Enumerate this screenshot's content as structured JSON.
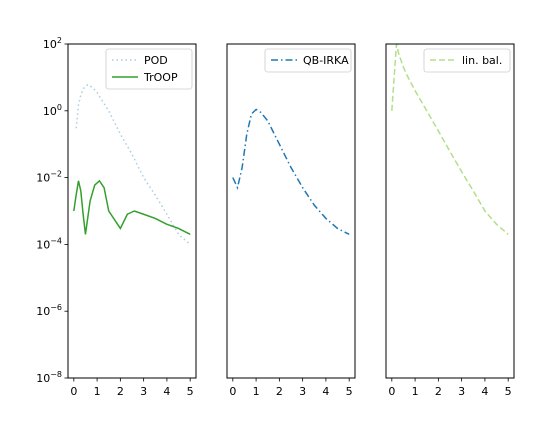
{
  "chart_data": [
    {
      "type": "line",
      "xlim": [
        -0.25,
        5.25
      ],
      "ylim": [
        1e-08,
        100
      ],
      "y_scale": "log",
      "x_ticks": [
        "0",
        "1",
        "2",
        "3",
        "4",
        "5"
      ],
      "y_ticks": [
        {
          "base": "10",
          "exp": "2"
        },
        {
          "base": "10",
          "exp": "0"
        },
        {
          "base": "10",
          "exp": "−2"
        },
        {
          "base": "10",
          "exp": "−4"
        },
        {
          "base": "10",
          "exp": "−6"
        },
        {
          "base": "10",
          "exp": "−8"
        }
      ],
      "legend_position": "top-right",
      "grid": false,
      "series": [
        {
          "name": "POD",
          "color": "#a6cee3",
          "style": "dotted",
          "x": [
            0.1,
            0.2,
            0.3,
            0.4,
            0.5,
            0.6,
            0.8,
            1,
            1.5,
            2,
            2.5,
            3,
            3.5,
            4,
            4.5,
            5
          ],
          "y": [
            0.3,
            1.5,
            3,
            4.5,
            5.5,
            6,
            5,
            3.5,
            1,
            0.2,
            0.05,
            0.01,
            0.003,
            0.0008,
            0.0002,
            0.0001
          ]
        },
        {
          "name": "TrOOP",
          "color": "#33a02c",
          "style": "solid",
          "x": [
            0,
            0.1,
            0.2,
            0.3,
            0.4,
            0.5,
            0.7,
            0.9,
            1.1,
            1.3,
            1.5,
            2,
            2.3,
            2.6,
            3,
            3.5,
            4,
            4.5,
            5
          ],
          "y": [
            0.001,
            0.003,
            0.008,
            0.004,
            0.0008,
            0.0002,
            0.002,
            0.006,
            0.008,
            0.005,
            0.001,
            0.0003,
            0.0008,
            0.001,
            0.0008,
            0.0006,
            0.0004,
            0.0003,
            0.0002
          ]
        }
      ]
    },
    {
      "type": "line",
      "xlim": [
        -0.25,
        5.25
      ],
      "ylim": [
        1e-08,
        100
      ],
      "y_scale": "log",
      "x_ticks": [
        "0",
        "1",
        "2",
        "3",
        "4",
        "5"
      ],
      "legend_position": "top-right",
      "grid": false,
      "series": [
        {
          "name": "QB-IRKA",
          "color": "#1f78b4",
          "style": "dashdot",
          "x": [
            0,
            0.2,
            0.4,
            0.6,
            0.8,
            1,
            1.2,
            1.5,
            2,
            2.5,
            3,
            3.5,
            4,
            4.5,
            5
          ],
          "y": [
            0.01,
            0.005,
            0.02,
            0.2,
            0.8,
            1.1,
            0.9,
            0.5,
            0.1,
            0.02,
            0.005,
            0.0015,
            0.0006,
            0.0003,
            0.0002
          ]
        }
      ]
    },
    {
      "type": "line",
      "xlim": [
        -0.25,
        5.25
      ],
      "ylim": [
        1e-08,
        100
      ],
      "y_scale": "log",
      "x_ticks": [
        "0",
        "1",
        "2",
        "3",
        "4",
        "5"
      ],
      "legend_position": "top-right",
      "grid": false,
      "series": [
        {
          "name": "lin. bal.",
          "color": "#b2df8a",
          "style": "dashed",
          "x": [
            0,
            0.1,
            0.2,
            0.3,
            0.5,
            0.7,
            1,
            1.5,
            2,
            2.5,
            3,
            3.5,
            4,
            4.5,
            5
          ],
          "y": [
            1,
            10,
            100,
            50,
            20,
            10,
            4,
            1,
            0.25,
            0.06,
            0.015,
            0.004,
            0.001,
            0.0004,
            0.0002
          ]
        }
      ]
    }
  ]
}
